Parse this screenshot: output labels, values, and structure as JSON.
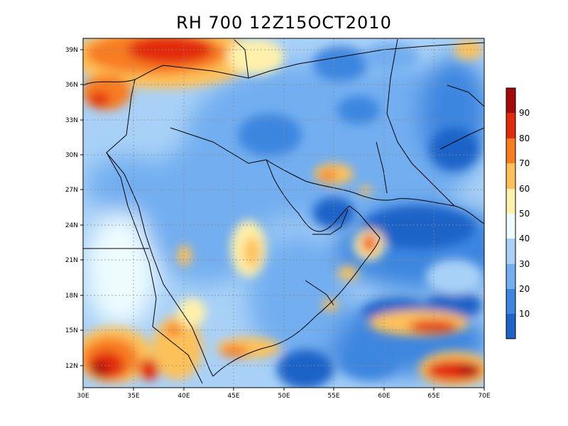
{
  "title": "RH 700 12Z15OCT2010",
  "map": {
    "lon_range": [
      30,
      70
    ],
    "lat_range": [
      10.3,
      39.8
    ],
    "lon_ticks": [
      "30E",
      "35E",
      "40E",
      "45E",
      "50E",
      "55E",
      "60E",
      "65E",
      "70E"
    ],
    "lat_ticks": [
      "12N",
      "15N",
      "18N",
      "21N",
      "24N",
      "27N",
      "30N",
      "33N",
      "36N",
      "39N"
    ],
    "grid": true
  },
  "colorbar": {
    "labels": [
      "10",
      "20",
      "30",
      "40",
      "50",
      "60",
      "70",
      "80",
      "90"
    ],
    "colors": [
      "#1f63c8",
      "#3c86e0",
      "#72aef0",
      "#a9d1f7",
      "#eefcff",
      "#fff1ab",
      "#fdc15a",
      "#f77d20",
      "#e22a0d",
      "#a50a0a"
    ]
  }
}
